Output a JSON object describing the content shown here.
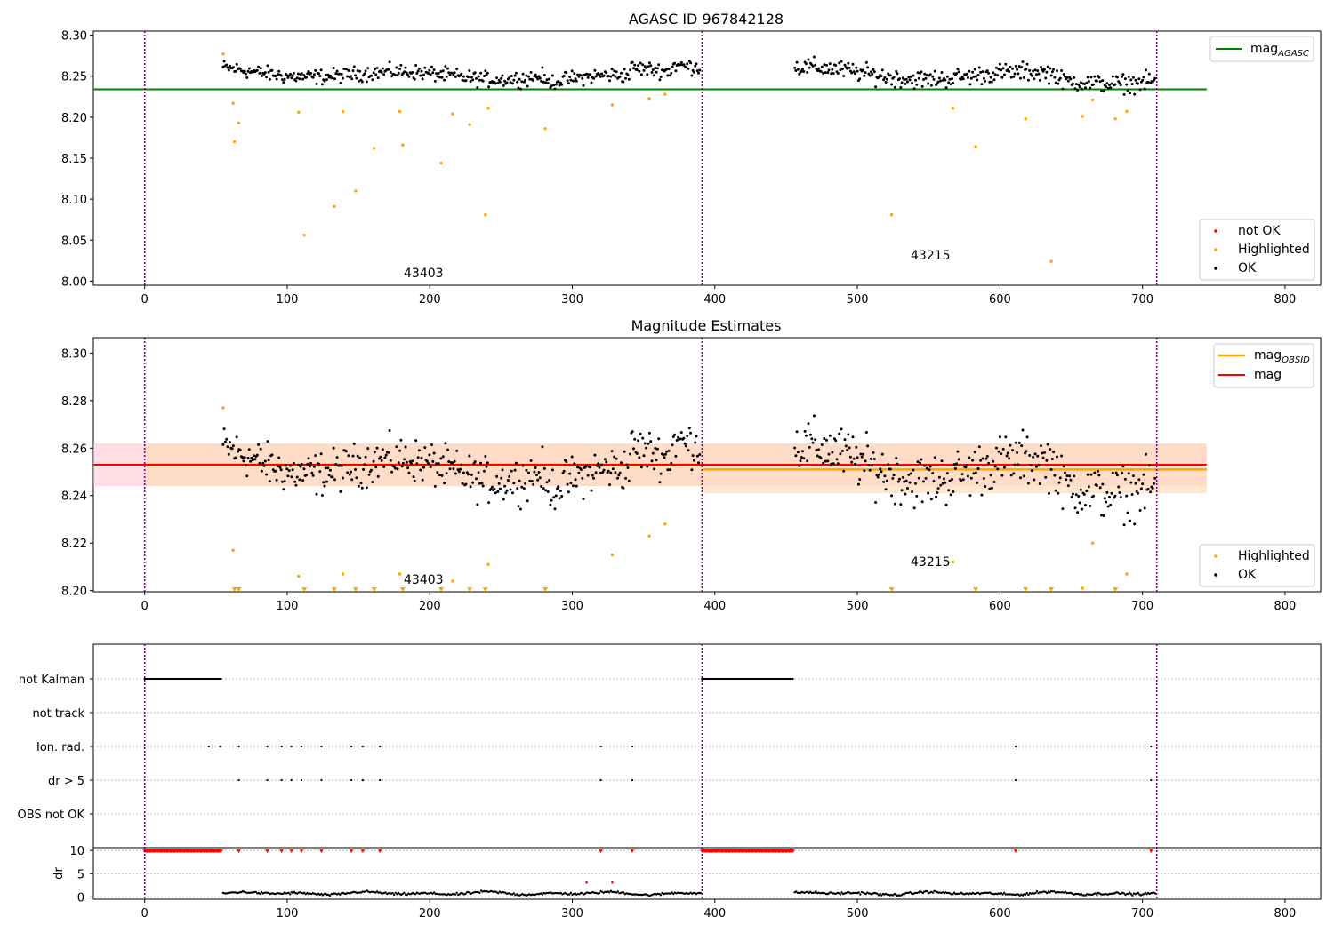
{
  "colors": {
    "ok": "#000000",
    "highlighted": "#ffa500",
    "not_ok": "#ff0000",
    "agasc": "#008000",
    "mag": "#ff0000",
    "obsid": "#ffa500",
    "obs_split": "#800080",
    "band_mag": "#ffc0cb",
    "band_obsid": "#ffdab9"
  },
  "chart_data": [
    {
      "type": "scatter",
      "title": "AGASC ID 967842128",
      "xlim": [
        -36,
        825
      ],
      "ylim": [
        7.995,
        8.305
      ],
      "xticks": [
        0,
        100,
        200,
        300,
        400,
        500,
        600,
        700,
        800
      ],
      "yticks": [
        8.0,
        8.05,
        8.1,
        8.15,
        8.2,
        8.25,
        8.3
      ],
      "ytick_labels": [
        "8.00",
        "8.05",
        "8.10",
        "8.15",
        "8.20",
        "8.25",
        "8.30"
      ],
      "obs_boundaries": [
        0,
        391,
        710
      ],
      "obsid_labels": [
        {
          "text": "43403",
          "x": 194,
          "y": 8.005
        },
        {
          "text": "43215",
          "x": 549,
          "y": 8.027
        }
      ],
      "lines": [
        {
          "name": "magAGASC",
          "y": 8.234,
          "x": [
            -36,
            745
          ]
        }
      ],
      "legend_upper": {
        "position": "top-right",
        "entries": [
          {
            "label": "mag",
            "sub": "AGASC",
            "kind": "line",
            "color_key": "agasc"
          }
        ]
      },
      "legend_lower": {
        "position": "bottom-right",
        "entries": [
          {
            "label": "not OK",
            "kind": "dot",
            "color_key": "not_ok"
          },
          {
            "label": "Highlighted",
            "kind": "dot",
            "color_key": "highlighted"
          },
          {
            "label": "OK",
            "kind": "dot",
            "color_key": "ok"
          }
        ]
      },
      "highlighted": [
        [
          55,
          8.277
        ],
        [
          62,
          8.217
        ],
        [
          63,
          8.17
        ],
        [
          66,
          8.193
        ],
        [
          108,
          8.206
        ],
        [
          112,
          8.056
        ],
        [
          133,
          8.091
        ],
        [
          139,
          8.207
        ],
        [
          148,
          8.11
        ],
        [
          161,
          8.162
        ],
        [
          179,
          8.207
        ],
        [
          181,
          8.166
        ],
        [
          208,
          8.144
        ],
        [
          216,
          8.204
        ],
        [
          228,
          8.191
        ],
        [
          239,
          8.081
        ],
        [
          241,
          8.211
        ],
        [
          281,
          8.186
        ],
        [
          328,
          8.215
        ],
        [
          354,
          8.223
        ],
        [
          365,
          8.228
        ],
        [
          524,
          8.081
        ],
        [
          567,
          8.211
        ],
        [
          583,
          8.164
        ],
        [
          618,
          8.198
        ],
        [
          636,
          8.024
        ],
        [
          658,
          8.201
        ],
        [
          665,
          8.221
        ],
        [
          681,
          8.198
        ],
        [
          689,
          8.207
        ]
      ]
    },
    {
      "type": "scatter",
      "title": "Magnitude Estimates",
      "xlim": [
        -36,
        825
      ],
      "ylim": [
        8.1995,
        8.3065
      ],
      "xticks": [
        0,
        100,
        200,
        300,
        400,
        500,
        600,
        700,
        800
      ],
      "yticks": [
        8.2,
        8.22,
        8.24,
        8.26,
        8.28,
        8.3
      ],
      "ytick_labels": [
        "8.20",
        "8.22",
        "8.24",
        "8.26",
        "8.28",
        "8.30"
      ],
      "obs_boundaries": [
        0,
        391,
        710
      ],
      "obsid_labels": [
        {
          "text": "43403",
          "x": 194,
          "y": 8.2015
        },
        {
          "text": "43215",
          "x": 549,
          "y": 8.2115
        }
      ],
      "mag": {
        "value": 8.253,
        "band": [
          8.244,
          8.262
        ],
        "x": [
          -36,
          745
        ]
      },
      "obsid_mags": [
        {
          "x": [
            0,
            391
          ],
          "value": 8.253,
          "band": [
            8.244,
            8.262
          ]
        },
        {
          "x": [
            391,
            745
          ],
          "value": 8.251,
          "band": [
            8.241,
            8.262
          ]
        }
      ],
      "legend_upper": {
        "position": "top-right",
        "entries": [
          {
            "label": "mag",
            "sub": "OBSID",
            "kind": "line",
            "color_key": "obsid"
          },
          {
            "label": "mag",
            "sub": "",
            "kind": "line",
            "color_key": "mag"
          }
        ]
      },
      "legend_lower": {
        "position": "bottom-right",
        "entries": [
          {
            "label": "Highlighted",
            "kind": "dot",
            "color_key": "highlighted"
          },
          {
            "label": "OK",
            "kind": "dot",
            "color_key": "ok"
          }
        ]
      },
      "highlighted": [
        [
          55,
          8.277
        ],
        [
          62,
          8.217
        ],
        [
          108,
          8.206
        ],
        [
          139,
          8.207
        ],
        [
          179,
          8.207
        ],
        [
          216,
          8.204
        ],
        [
          241,
          8.211
        ],
        [
          328,
          8.215
        ],
        [
          354,
          8.223
        ],
        [
          365,
          8.228
        ],
        [
          567,
          8.212
        ],
        [
          658,
          8.201
        ],
        [
          665,
          8.22
        ],
        [
          689,
          8.207
        ]
      ],
      "clipped_markers": [
        63,
        66,
        112,
        133,
        148,
        161,
        181,
        208,
        228,
        239,
        281,
        524,
        583,
        618,
        636,
        681
      ]
    },
    {
      "type": "scatter",
      "title": "",
      "xlim": [
        -36,
        825
      ],
      "xticks": [
        0,
        100,
        200,
        300,
        400,
        500,
        600,
        700,
        800
      ],
      "obs_boundaries": [
        0,
        391,
        710
      ],
      "flag_rows": [
        "not Kalman",
        "not track",
        "Ion. rad.",
        "dr > 5",
        "OBS not OK"
      ],
      "flag_points": {
        "not Kalman": {
          "ranges": [
            [
              0,
              54
            ],
            [
              391,
              455
            ]
          ]
        },
        "not track": {
          "x": []
        },
        "Ion. rad.": {
          "x": [
            45,
            53,
            66,
            86,
            96,
            103,
            110,
            124,
            145,
            153,
            165,
            320,
            342,
            611,
            706
          ]
        },
        "dr > 5": {
          "x": [
            66,
            86,
            96,
            103,
            110,
            124,
            145,
            153,
            165,
            320,
            342,
            611,
            706
          ]
        },
        "OBS not OK": {
          "x": []
        }
      },
      "dr_yticks": [
        0,
        5,
        10
      ],
      "dr_ylabel": "dr",
      "dr_ylim": [
        -0.5,
        10.6
      ],
      "dr_high": {
        "ranges": [
          [
            0,
            54
          ],
          [
            391,
            455
          ]
        ],
        "x": [
          66,
          86,
          96,
          103,
          110,
          124,
          145,
          153,
          165,
          320,
          342,
          611,
          706
        ],
        "value": 9.8
      },
      "dr_outliers": [
        [
          310,
          3.1
        ],
        [
          328,
          3.1
        ]
      ]
    }
  ]
}
